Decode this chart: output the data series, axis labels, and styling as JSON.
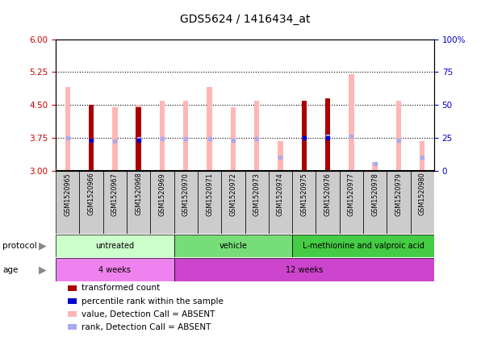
{
  "title": "GDS5624 / 1416434_at",
  "samples": [
    "GSM1520965",
    "GSM1520966",
    "GSM1520967",
    "GSM1520968",
    "GSM1520969",
    "GSM1520970",
    "GSM1520971",
    "GSM1520972",
    "GSM1520973",
    "GSM1520974",
    "GSM1520975",
    "GSM1520976",
    "GSM1520977",
    "GSM1520978",
    "GSM1520979",
    "GSM1520980"
  ],
  "red_bar_heights": [
    null,
    4.5,
    null,
    4.45,
    null,
    null,
    null,
    null,
    null,
    null,
    4.6,
    4.65,
    null,
    null,
    null,
    null
  ],
  "pink_bar_heights": [
    4.9,
    4.5,
    4.45,
    4.5,
    4.6,
    4.6,
    4.9,
    4.45,
    4.6,
    3.68,
    4.6,
    4.65,
    5.2,
    3.2,
    4.6,
    3.68
  ],
  "blue_dot_y": [
    null,
    3.7,
    null,
    3.7,
    null,
    null,
    null,
    null,
    null,
    null,
    3.75,
    3.75,
    null,
    null,
    null,
    null
  ],
  "lightblue_dot_y": [
    3.75,
    3.7,
    3.68,
    3.73,
    3.73,
    3.73,
    3.73,
    3.7,
    3.73,
    3.3,
    3.75,
    3.78,
    3.78,
    3.15,
    3.7,
    3.3
  ],
  "ylim": [
    3.0,
    6.0
  ],
  "yticks_left": [
    3.0,
    3.75,
    4.5,
    5.25,
    6.0
  ],
  "yticks_right": [
    0,
    25,
    50,
    75,
    100
  ],
  "ylabel_left_color": "#cc0000",
  "ylabel_right_color": "#0000cc",
  "proto_groups": [
    {
      "label": "untreated",
      "start": 0,
      "end": 5,
      "color": "#ccffcc"
    },
    {
      "label": "vehicle",
      "start": 5,
      "end": 10,
      "color": "#77dd77"
    },
    {
      "label": "L-methionine and valproic acid",
      "start": 10,
      "end": 16,
      "color": "#44cc44"
    }
  ],
  "age_groups": [
    {
      "label": "4 weeks",
      "start": 0,
      "end": 5,
      "color": "#ee82ee"
    },
    {
      "label": "12 weeks",
      "start": 5,
      "end": 16,
      "color": "#cc44cc"
    }
  ],
  "bg_color": "#ffffff",
  "plot_bg": "#ffffff",
  "tick_bg": "#cccccc",
  "border_color": "#000000",
  "red_color": "#aa0000",
  "blue_color": "#0000cc",
  "pink_color": "#ffb6b6",
  "lightblue_color": "#aaaaee"
}
